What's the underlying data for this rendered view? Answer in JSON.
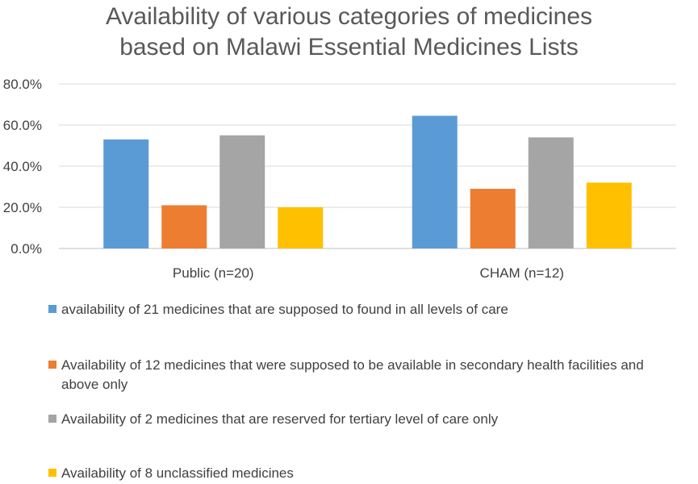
{
  "chart_data": {
    "type": "bar",
    "title": [
      "Availability of various categories of medicines",
      "based on Malawi Essential Medicines Lists"
    ],
    "categories": [
      "Public (n=20)",
      "CHAM (n=12)"
    ],
    "series": [
      {
        "name": "availability of 21 medicines that are supposed to found in all levels of care",
        "color": "#5B9BD5",
        "values": [
          53.0,
          64.5
        ]
      },
      {
        "name": "Availability of 12  medicines that were supposed to be available in secondary health facilities and above only",
        "color": "#ED7D31",
        "values": [
          21.0,
          29.0
        ]
      },
      {
        "name": "Availability of 2 medicines that are reserved for tertiary level of care only",
        "color": "#A5A5A5",
        "values": [
          55.0,
          54.0
        ]
      },
      {
        "name": "Availability of 8 unclassified medicines",
        "color": "#FFC000",
        "values": [
          20.0,
          32.0
        ]
      }
    ],
    "yticks": [
      "0.0%",
      "20.0%",
      "40.0%",
      "60.0%",
      "80.0%"
    ],
    "ylim": [
      0,
      80
    ],
    "grid": true,
    "legend_position": "bottom"
  }
}
